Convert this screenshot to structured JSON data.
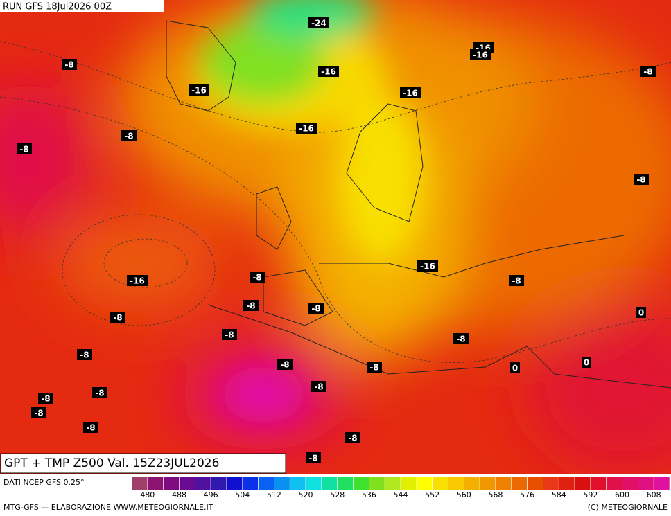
{
  "header": {
    "run": "RUN GFS 18Jul2026 00Z"
  },
  "map": {
    "title": "GPT + TMP Z500 Val. 15Z23JUL2026",
    "isotherm_labels": [
      "-24",
      "-16",
      "-16",
      "-8",
      "-8",
      "-16",
      "-16",
      "-16",
      "-16",
      "-8",
      "-8",
      "-8",
      "-16",
      "-8",
      "-16",
      "-8",
      "-8",
      "-8",
      "0",
      "-8",
      "-8",
      "-8",
      "-8",
      "-8",
      "-8",
      "0",
      "0",
      "-8",
      "-8",
      "-8",
      "-8",
      "-8",
      "-8",
      "-8"
    ]
  },
  "legend": {
    "source": "DATI NCEP GFS 0.25°",
    "labels": [
      480,
      488,
      496,
      504,
      512,
      520,
      528,
      536,
      544,
      552,
      560,
      568,
      576,
      584,
      592,
      600,
      608
    ],
    "colors": [
      "#a0406a",
      "#8c1470",
      "#800a80",
      "#6a0a90",
      "#5010a0",
      "#3018b0",
      "#1010d0",
      "#0a30e8",
      "#0a60f0",
      "#0a90f0",
      "#10c0f0",
      "#10e0e0",
      "#10e0a0",
      "#20e060",
      "#40e030",
      "#80e020",
      "#b0e820",
      "#e0f000",
      "#ffff00",
      "#f8e000",
      "#f8c800",
      "#f4b000",
      "#f09800",
      "#f08000",
      "#ec6800",
      "#e85000",
      "#e83818",
      "#e02010",
      "#d81010",
      "#e0102c",
      "#e0104a",
      "#e01066",
      "#e01080",
      "#e010a0"
    ]
  },
  "footer": {
    "left": "MTG-GFS — ELABORAZIONE WWW.METEOGIORNALE.IT",
    "right": "(C) METEOGIORNALE"
  }
}
